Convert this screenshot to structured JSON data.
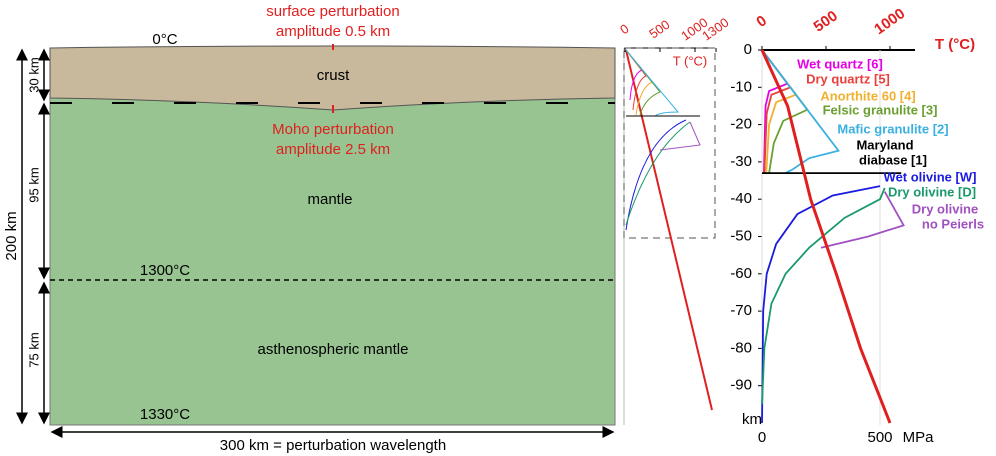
{
  "model": {
    "surface_label": [
      "surface perturbation",
      "amplitude 0.5 km"
    ],
    "surface_temperature": "0°C",
    "crust": "crust",
    "moho_label": [
      "Moho perturbation",
      "amplitude 2.5 km"
    ],
    "mantle": "mantle",
    "lab_temperature": "1300°C",
    "asthenosphere": "asthenospheric mantle",
    "bottom_temperature": "1330°C",
    "width_label": "300 km = perturbation wavelength",
    "total_depth": "200 km",
    "crust_thickness": "30 km",
    "lithosphere_mantle_thickness": "95 km",
    "asthenosphere_thickness": "75 km"
  },
  "temperature_inset": {
    "axis_label": "T (°C)",
    "ticks": [
      0,
      500,
      1000,
      1300
    ]
  },
  "strength_panel": {
    "temperature_axis": {
      "label": "T (°C)",
      "ticks": [
        0,
        500,
        1000
      ]
    },
    "stress_axis": {
      "unit": "MPa",
      "ticks": [
        0,
        500
      ]
    },
    "depth_axis": {
      "unit": "km",
      "ticks": [
        0,
        -10,
        -20,
        -30,
        -40,
        -50,
        -60,
        -70,
        -80,
        -90
      ]
    },
    "geotherm": [
      [
        0,
        0
      ],
      [
        200,
        -15
      ],
      [
        380,
        -40
      ],
      [
        580,
        -60
      ],
      [
        770,
        -80
      ],
      [
        1000,
        -100
      ]
    ],
    "curves": [
      {
        "label": [
          "Wet quartz [6]"
        ],
        "color": "#e600e6",
        "points": [
          [
            0,
            0
          ],
          [
            108,
            -9
          ],
          [
            30,
            -11
          ],
          [
            15,
            -15
          ],
          [
            8,
            -33
          ]
        ]
      },
      {
        "label": [
          "Dry quartz [5]"
        ],
        "color": "#e8413c",
        "points": [
          [
            0,
            0
          ],
          [
            120,
            -10
          ],
          [
            40,
            -12
          ],
          [
            20,
            -17
          ],
          [
            10,
            -33
          ]
        ]
      },
      {
        "label": [
          "Anorthite 60 [4]"
        ],
        "color": "#f0b030",
        "points": [
          [
            0,
            0
          ],
          [
            144,
            -12
          ],
          [
            60,
            -14
          ],
          [
            30,
            -20
          ],
          [
            18,
            -33
          ]
        ]
      },
      {
        "label": [
          "Felsic granulite [3]"
        ],
        "color": "#6aa030",
        "points": [
          [
            0,
            0
          ],
          [
            192,
            -16
          ],
          [
            90,
            -19
          ],
          [
            50,
            -25
          ],
          [
            30,
            -33
          ]
        ]
      },
      {
        "label": [
          "Mafic granulite [2]"
        ],
        "color": "#3ab0e0",
        "points": [
          [
            0,
            0
          ],
          [
            324,
            -27
          ],
          [
            200,
            -29
          ],
          [
            130,
            -32
          ],
          [
            100,
            -33
          ]
        ]
      },
      {
        "label": [
          "Maryland",
          "diabase [1]"
        ],
        "color": "#000000",
        "points": [
          [
            0,
            -33
          ],
          [
            590,
            -33
          ]
        ]
      },
      {
        "label": [
          "Wet olivine [W]"
        ],
        "color": "#1a1ae0",
        "points": [
          [
            0,
            -100
          ],
          [
            5,
            -70
          ],
          [
            20,
            -60
          ],
          [
            60,
            -52
          ],
          [
            150,
            -44
          ],
          [
            300,
            -39
          ],
          [
            500,
            -36.5
          ]
        ]
      },
      {
        "label": [
          "Dry olivine [D]"
        ],
        "color": "#1a9a6a",
        "points": [
          [
            0,
            -95
          ],
          [
            10,
            -80
          ],
          [
            40,
            -68
          ],
          [
            100,
            -60
          ],
          [
            200,
            -53
          ],
          [
            350,
            -45
          ],
          [
            500,
            -40
          ],
          [
            520,
            -37
          ]
        ]
      },
      {
        "label": [
          "Dry olivine",
          "no Peierls"
        ],
        "color": "#a050c0",
        "points": [
          [
            250,
            -53
          ],
          [
            450,
            -50
          ],
          [
            600,
            -47
          ],
          [
            520,
            -38
          ]
        ]
      }
    ]
  }
}
